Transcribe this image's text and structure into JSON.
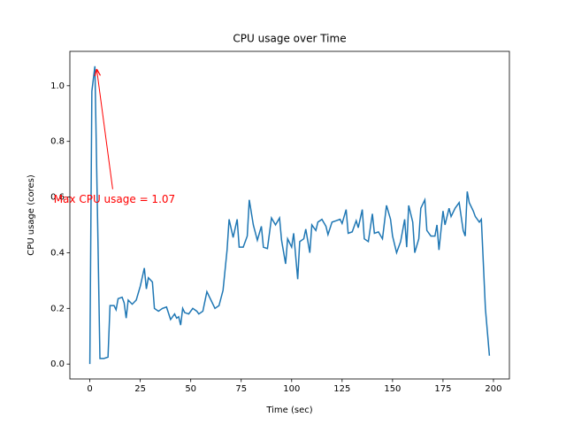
{
  "chart_data": {
    "type": "line",
    "title": "CPU usage over Time",
    "xlabel": "Time (sec)",
    "ylabel": "CPU usage (cores)",
    "x": [
      0,
      1,
      2.5,
      4,
      5,
      7,
      9,
      10,
      12,
      13,
      14,
      16,
      17,
      18,
      19,
      21,
      23,
      25,
      27,
      28,
      29,
      31,
      32,
      34,
      36,
      38,
      40,
      42,
      43,
      44,
      45,
      46,
      47,
      49,
      51,
      53,
      54,
      56,
      58,
      60,
      62,
      64,
      66,
      68,
      69,
      71,
      73,
      74,
      76,
      78,
      79,
      81,
      83,
      85,
      86,
      88,
      90,
      92,
      94,
      95,
      97,
      98,
      100,
      101,
      103,
      104,
      106,
      107,
      109,
      110,
      112,
      113,
      115,
      117,
      118,
      120,
      122,
      124,
      125,
      127,
      128,
      130,
      132,
      133,
      135,
      136,
      138,
      140,
      141,
      143,
      145,
      147,
      149,
      150,
      152,
      154,
      156,
      157,
      158,
      160,
      161,
      163,
      164,
      166,
      167,
      169,
      171,
      172,
      173,
      175,
      176,
      178,
      179,
      181,
      183,
      185,
      186,
      187,
      188,
      190,
      191,
      193,
      194,
      196,
      198
    ],
    "series": [
      {
        "name": "CPU usage",
        "color": "#1f77b4",
        "values": [
          0,
          0.98,
          1.07,
          0.45,
          0.02,
          0.02,
          0.025,
          0.21,
          0.21,
          0.195,
          0.235,
          0.24,
          0.22,
          0.165,
          0.23,
          0.215,
          0.23,
          0.28,
          0.345,
          0.27,
          0.31,
          0.295,
          0.2,
          0.19,
          0.2,
          0.205,
          0.16,
          0.18,
          0.165,
          0.17,
          0.14,
          0.2,
          0.185,
          0.18,
          0.2,
          0.19,
          0.18,
          0.19,
          0.26,
          0.23,
          0.2,
          0.21,
          0.265,
          0.41,
          0.52,
          0.455,
          0.52,
          0.42,
          0.42,
          0.46,
          0.59,
          0.5,
          0.445,
          0.495,
          0.42,
          0.415,
          0.525,
          0.5,
          0.525,
          0.445,
          0.36,
          0.45,
          0.42,
          0.47,
          0.305,
          0.44,
          0.45,
          0.485,
          0.4,
          0.5,
          0.48,
          0.51,
          0.52,
          0.495,
          0.465,
          0.51,
          0.515,
          0.52,
          0.505,
          0.555,
          0.47,
          0.475,
          0.515,
          0.49,
          0.555,
          0.45,
          0.44,
          0.54,
          0.47,
          0.475,
          0.45,
          0.57,
          0.52,
          0.46,
          0.4,
          0.44,
          0.52,
          0.42,
          0.57,
          0.51,
          0.4,
          0.45,
          0.56,
          0.59,
          0.48,
          0.46,
          0.46,
          0.5,
          0.41,
          0.55,
          0.5,
          0.56,
          0.53,
          0.56,
          0.58,
          0.48,
          0.46,
          0.62,
          0.58,
          0.55,
          0.53,
          0.51,
          0.52,
          0.2,
          0.03
        ]
      }
    ],
    "xlim": [
      -9.9,
      207.9
    ],
    "ylim": [
      -0.0535,
      1.1235
    ],
    "xticks": [
      0,
      25,
      50,
      75,
      100,
      125,
      150,
      175,
      200
    ],
    "yticks": [
      {
        "value": 0,
        "label": "0.0"
      },
      0.2,
      0.4,
      0.6,
      0.8,
      {
        "value": 1,
        "label": "1.0"
      }
    ],
    "annotation": {
      "text": "Max CPU usage = 1.07",
      "xy": [
        2.5,
        1.07
      ],
      "xytext": [
        12.2,
        0.59
      ],
      "color": "red"
    }
  }
}
